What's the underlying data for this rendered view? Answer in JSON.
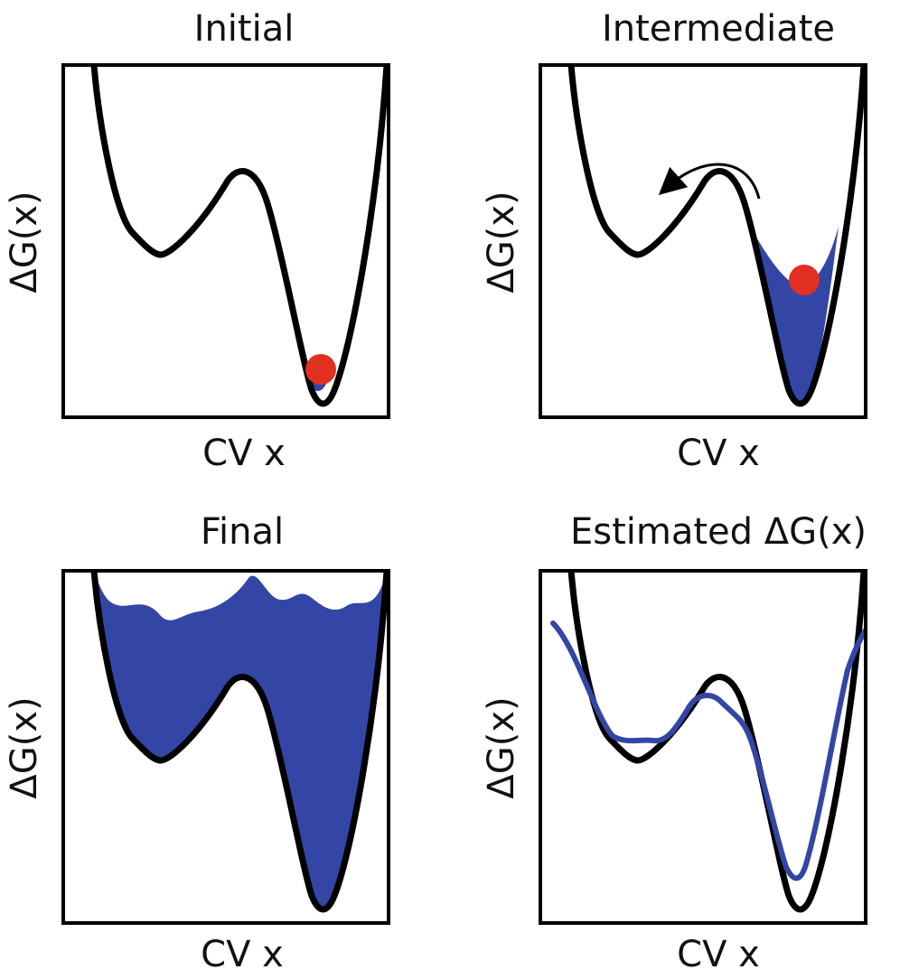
{
  "colors": {
    "curve": "#000000",
    "fill": "#3346a6",
    "particle": "#e1301f",
    "estimate": "#3346a6"
  },
  "panels": [
    {
      "title": "Initial",
      "xlabel": "CV x",
      "ylabel": "ΔG(x)"
    },
    {
      "title": "Intermediate",
      "xlabel": "CV x",
      "ylabel": "ΔG(x)"
    },
    {
      "title": "Final",
      "xlabel": "CV x",
      "ylabel": "ΔG(x)"
    },
    {
      "title": "Estimated ΔG(x)",
      "xlabel": "CV x",
      "ylabel": "ΔG(x)"
    }
  ],
  "icons": {
    "particle": "particle-icon",
    "arrow": "curved-arrow-icon"
  }
}
